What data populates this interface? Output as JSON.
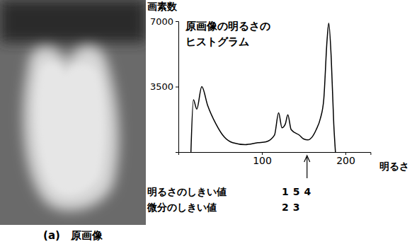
{
  "chart_data": {
    "type": "line",
    "color": "#000000",
    "y_label": "画素数",
    "x_label": "明るさ",
    "annotation": [
      "原画像の明るさの",
      "ヒストグラム"
    ],
    "caption": "(a)　原画像",
    "x": [
      15,
      18,
      22,
      28,
      35,
      45,
      55,
      65,
      80,
      95,
      105,
      115,
      120,
      124,
      128,
      131,
      135,
      145,
      150,
      155,
      160,
      165,
      170,
      174,
      178,
      180,
      183,
      186,
      188
    ],
    "values": [
      0,
      2800,
      2300,
      3500,
      2500,
      1500,
      800,
      500,
      400,
      500,
      550,
      900,
      2100,
      1300,
      1500,
      2000,
      1200,
      900,
      700,
      650,
      800,
      1200,
      1800,
      2800,
      6000,
      6900,
      5000,
      1500,
      0
    ],
    "xlim": [
      0,
      230
    ],
    "xticks": [
      100,
      200
    ],
    "ylim": [
      0,
      7000
    ],
    "yticks": [
      3500,
      7000
    ],
    "thresholds": [
      {
        "label": "明るさのしきい値",
        "value": 154
      },
      {
        "label": "微分のしきい値",
        "value": 23
      }
    ]
  }
}
